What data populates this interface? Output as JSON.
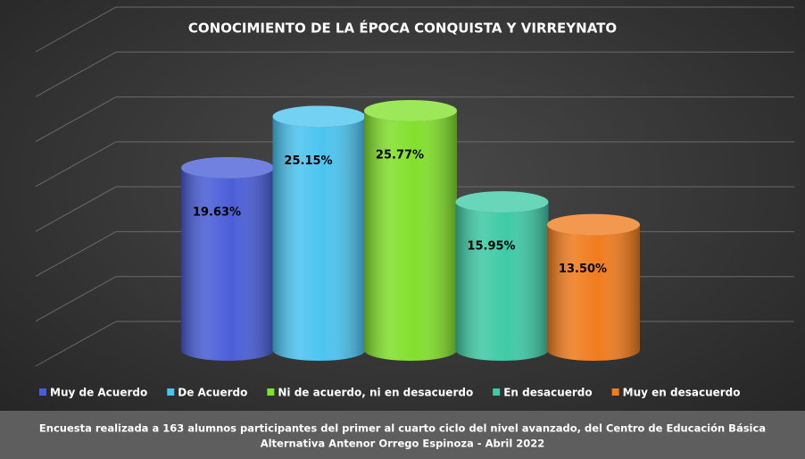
{
  "chart_data": {
    "type": "bar",
    "title": "CONOCIMIENTO DE LA ÉPOCA CONQUISTA Y VIRREYNATO",
    "categories": [
      null
    ],
    "series": [
      {
        "name": "Muy de Acuerdo",
        "color": "#4a5ed8",
        "values": [
          19.63
        ],
        "value_labels": [
          "19.63%"
        ]
      },
      {
        "name": "De Acuerdo",
        "color": "#4cc4f0",
        "values": [
          25.15
        ],
        "value_labels": [
          "25.15%"
        ]
      },
      {
        "name": "Ni de acuerdo, ni en desacuerdo",
        "color": "#82e02c",
        "values": [
          25.77
        ],
        "value_labels": [
          "25.77%"
        ]
      },
      {
        "name": "En desacuerdo",
        "color": "#3fcaa6",
        "values": [
          15.95
        ],
        "value_labels": [
          "15.95%"
        ]
      },
      {
        "name": "Muy en desacuerdo",
        "color": "#f07c1e",
        "values": [
          13.5
        ],
        "value_labels": [
          "13.50%"
        ]
      }
    ],
    "ylim": [
      0,
      35
    ],
    "yticks": [
      0,
      5,
      10,
      15,
      20,
      25,
      30,
      35
    ],
    "grid": true,
    "legend": "bottom",
    "caption": [
      "Encuesta realizada a 163 alumnos participantes del primer al cuarto ciclo del nivel avanzado, del Centro de Educación Básica",
      "Alternativa Antenor Orrego Espinoza - Abril 2022"
    ]
  }
}
